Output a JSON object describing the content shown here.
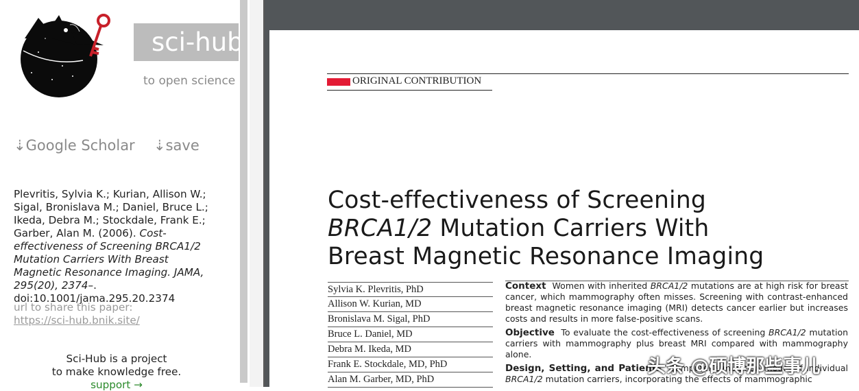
{
  "sidebar": {
    "title": "sci-hub",
    "tagline": "to open science",
    "google_scholar": "⇣Google Scholar",
    "save": "⇣save",
    "citation": {
      "plain": "Plevritis, Sylvia K.; Kurian, Allison W.; Sigal, Bronislava M.; Daniel, Bruce L.; Ikeda, Debra M.; Stockdale, Frank E.; Garber, Alan M. (2006). ",
      "italic": "Cost-effectiveness of Screening BRCA1/2 Mutation Carriers With Breast Magnetic Resonance Imaging. JAMA, 295(20), 2374–",
      "tail": ". doi:10.1001/jama.295.20.2374"
    },
    "share_label": "url to share this paper:",
    "share_url": "https://sci-hub.bnik.site/",
    "project_line1": "Sci-Hub is a project",
    "project_line2": "to make knowledge free.",
    "support": "support →"
  },
  "pdf": {
    "section_label": "ORIGINAL CONTRIBUTION",
    "title_line1": "Cost-effectiveness of Screening",
    "title_line2_italic": "BRCA1/2",
    "title_line2_rest": " Mutation Carriers With",
    "title_line3": "Breast Magnetic Resonance Imaging",
    "authors": [
      "Sylvia K. Plevritis, PhD",
      "Allison W. Kurian, MD",
      "Bronislava M. Sigal, PhD",
      "Bruce L. Daniel, MD",
      "Debra M. Ikeda, MD",
      "Frank E. Stockdale, MD, PhD",
      "Alan M. Garber, MD, PhD"
    ],
    "context_head": "Context",
    "context_a": "Women with inherited ",
    "context_ital": "BRCA1/2",
    "context_b": " mutations are at high risk for breast cancer, which mammography often misses. Screening with contrast-enhanced breast magnetic resonance imaging (MRI) detects cancer earlier but increases costs and results in more false-positive scans.",
    "objective_head": "Objective",
    "objective_a": "To evaluate the cost-effectiveness of screening ",
    "objective_ital": "BRCA1/2",
    "objective_b": " mutation carriers with mammography plus breast MRI compared with mammography alone.",
    "design_head": "Design, Setting, and Patients",
    "design_a": "Computer simulation model of individual ",
    "design_ital": "BRCA1/2",
    "design_b": " mutation carriers, incorporating the effects of mammographic"
  },
  "watermark": "头条 @硕博那些事儿",
  "colors": {
    "accent_red": "#e31b35",
    "title_box": "#bcbcbc",
    "viewer_bg": "#525659",
    "support_green": "#2b8a2b"
  }
}
